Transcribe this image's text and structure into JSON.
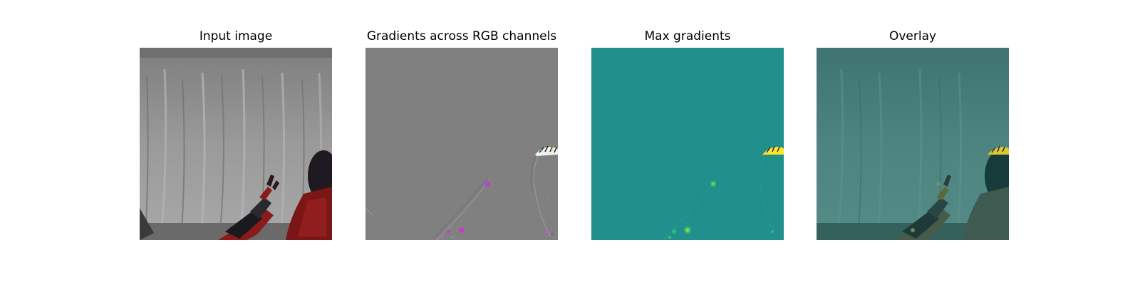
{
  "figure": {
    "panels": [
      {
        "title": "Input image",
        "content": "robot-arm-photo"
      },
      {
        "title": "Gradients across RGB channels",
        "content": "rgb-gradient-map"
      },
      {
        "title": "Max gradients",
        "content": "max-gradient-heatmap"
      },
      {
        "title": "Overlay",
        "content": "gradient-overlay"
      }
    ]
  },
  "colors": {
    "background": "#ffffff",
    "curtain_gray": "#8a8a8a",
    "gradient_gray": "#808080",
    "viridis_teal": "#21908d",
    "overlay_teal": "#4a7d78",
    "robot_red": "#8b1a1a",
    "highlight_yellow": "#fde725",
    "highlight_magenta": "#c040c0"
  }
}
